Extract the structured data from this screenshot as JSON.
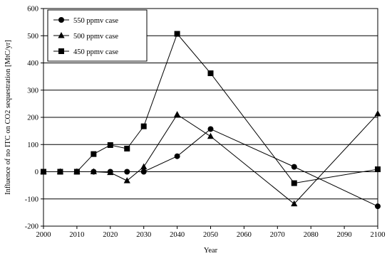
{
  "chart_data": {
    "type": "line",
    "title": "",
    "xlabel": "Year",
    "ylabel": "Influence of no ITC on CO2 sequestration [MtC/yr]",
    "xlim": [
      2000,
      2100
    ],
    "ylim": [
      -200,
      600
    ],
    "x_ticks": [
      2000,
      2010,
      2020,
      2030,
      2040,
      2050,
      2060,
      2070,
      2080,
      2090,
      2100
    ],
    "y_ticks": [
      -200,
      -100,
      0,
      100,
      200,
      300,
      400,
      500,
      600
    ],
    "grid": "horizontal",
    "legend_position": "top-left",
    "series": [
      {
        "name": "550 ppmv case",
        "marker": "circle",
        "x": [
          2000,
          2005,
          2010,
          2015,
          2020,
          2025,
          2030,
          2040,
          2050,
          2075,
          2100
        ],
        "y": [
          0,
          0,
          0,
          0,
          0,
          0,
          0,
          57,
          157,
          18,
          -127
        ]
      },
      {
        "name": "500 ppmv case",
        "marker": "triangle",
        "x": [
          2000,
          2005,
          2010,
          2015,
          2020,
          2025,
          2030,
          2040,
          2050,
          2075,
          2100
        ],
        "y": [
          0,
          0,
          0,
          0,
          -3,
          -33,
          18,
          210,
          130,
          -118,
          213
        ]
      },
      {
        "name": "450 ppmv case",
        "marker": "square",
        "x": [
          2000,
          2005,
          2010,
          2015,
          2020,
          2025,
          2030,
          2040,
          2050,
          2075,
          2100
        ],
        "y": [
          0,
          0,
          0,
          65,
          98,
          85,
          167,
          507,
          362,
          -42,
          9
        ]
      }
    ]
  }
}
